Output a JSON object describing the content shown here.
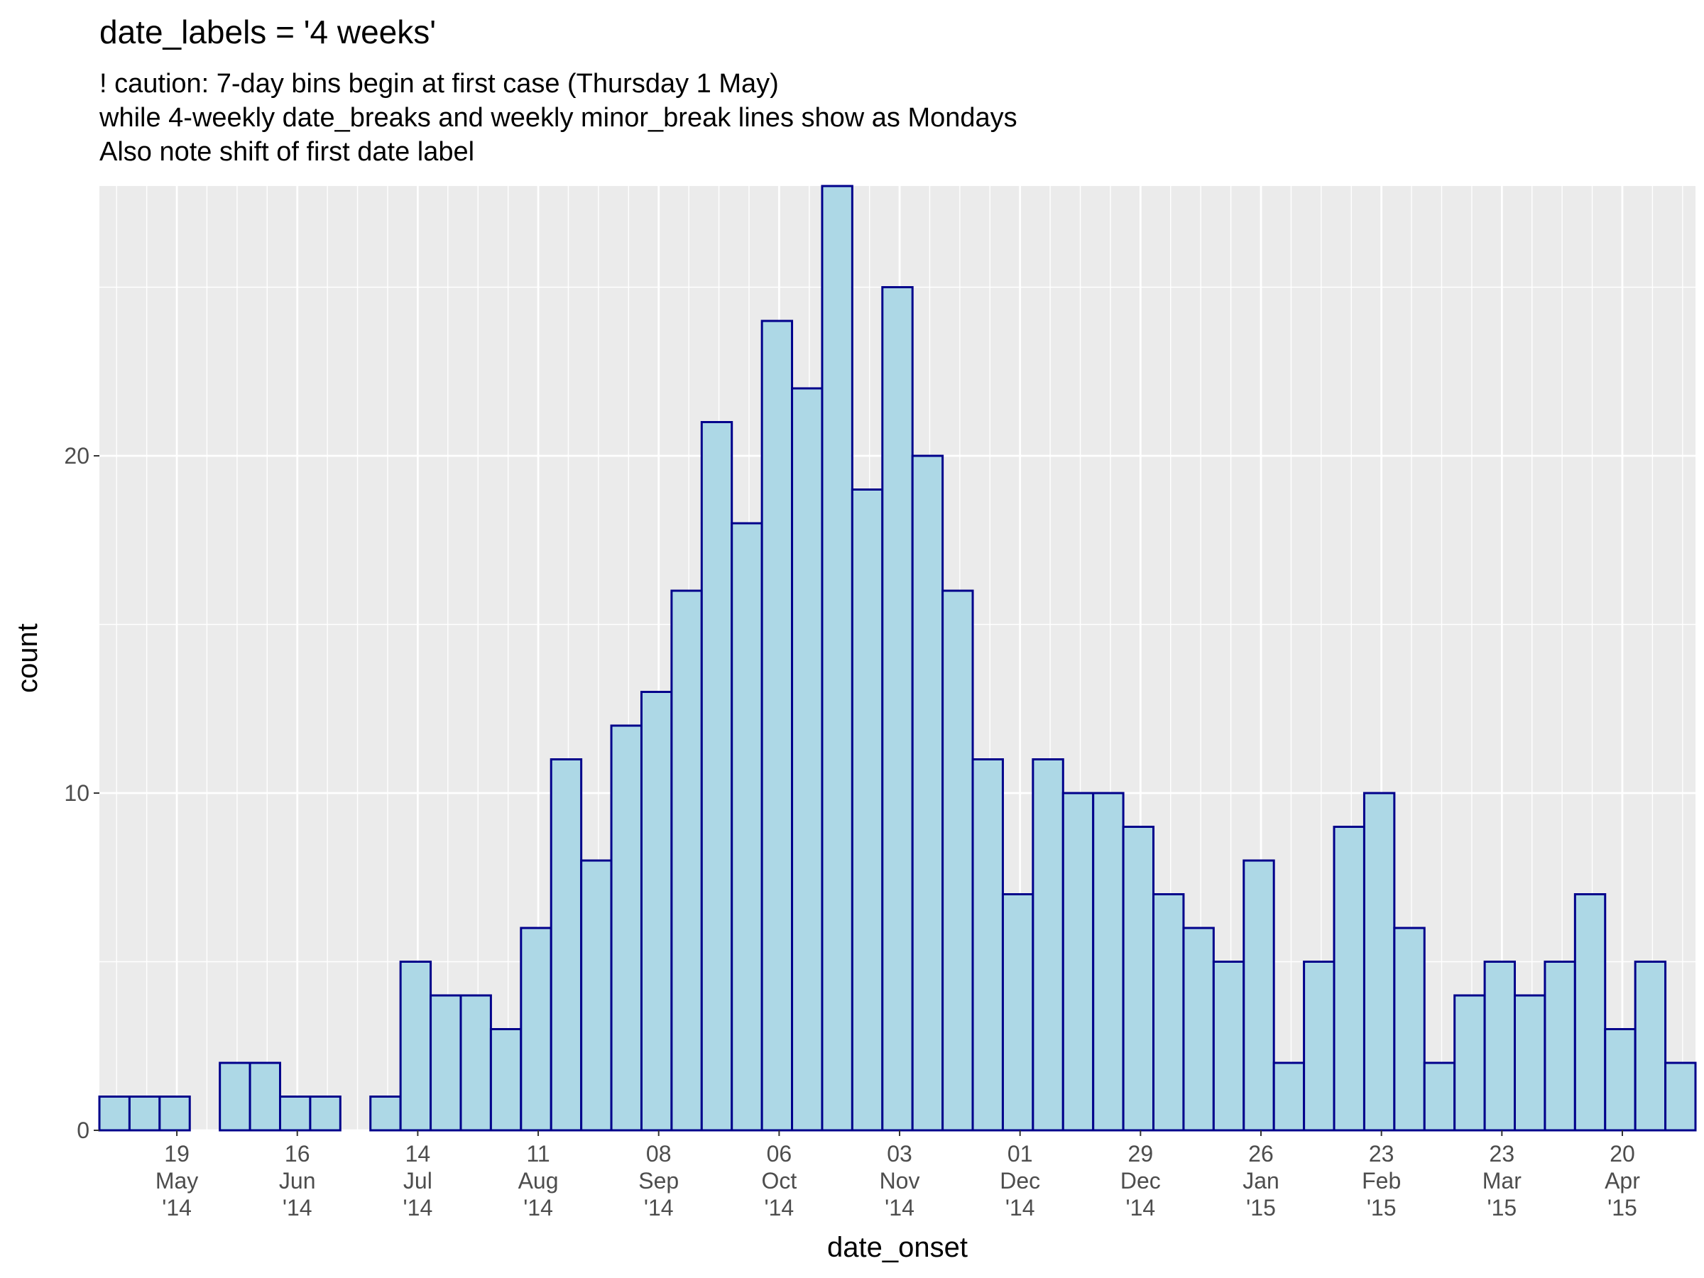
{
  "title": "date_labels = '4 weeks'",
  "subtitle_lines": [
    "! caution: 7-day bins begin at first case (Thursday 1 May)",
    "while 4-weekly date_breaks and weekly minor_break lines show as Mondays",
    "Also note shift of first date label"
  ],
  "colors": {
    "panel_bg": "#ebebeb",
    "grid": "#ffffff",
    "bar_fill": "#add8e6",
    "bar_stroke": "#00008b",
    "tick_text": "#4d4d4d"
  },
  "chart_data": {
    "type": "bar",
    "title": "date_labels = '4 weeks'",
    "xlabel": "date_onset",
    "ylabel": "count",
    "ylim": [
      0,
      28
    ],
    "grid": true,
    "y_ticks": [
      0,
      10,
      20
    ],
    "bin_width_days": 7,
    "first_bin_start": "2014-05-01",
    "x_range": [
      "2014-05-01",
      "2015-05-07"
    ],
    "values": [
      1,
      1,
      1,
      0,
      2,
      2,
      1,
      1,
      0,
      1,
      5,
      4,
      4,
      3,
      6,
      11,
      8,
      12,
      13,
      16,
      21,
      18,
      24,
      22,
      28,
      19,
      25,
      20,
      16,
      11,
      7,
      11,
      10,
      10,
      9,
      7,
      6,
      5,
      8,
      2,
      5,
      9,
      10,
      6,
      2,
      4,
      5,
      4,
      5,
      7,
      3,
      5,
      2
    ],
    "x_ticks": [
      {
        "date": "2014-05-19",
        "label": [
          "19",
          "May",
          "'14"
        ]
      },
      {
        "date": "2014-06-16",
        "label": [
          "16",
          "Jun",
          "'14"
        ]
      },
      {
        "date": "2014-07-14",
        "label": [
          "14",
          "Jul",
          "'14"
        ]
      },
      {
        "date": "2014-08-11",
        "label": [
          "11",
          "Aug",
          "'14"
        ]
      },
      {
        "date": "2014-09-08",
        "label": [
          "08",
          "Sep",
          "'14"
        ]
      },
      {
        "date": "2014-10-06",
        "label": [
          "06",
          "Oct",
          "'14"
        ]
      },
      {
        "date": "2014-11-03",
        "label": [
          "03",
          "Nov",
          "'14"
        ]
      },
      {
        "date": "2014-12-01",
        "label": [
          "01",
          "Dec",
          "'14"
        ]
      },
      {
        "date": "2014-12-29",
        "label": [
          "29",
          "Dec",
          "'14"
        ]
      },
      {
        "date": "2015-01-26",
        "label": [
          "26",
          "Jan",
          "'15"
        ]
      },
      {
        "date": "2015-02-23",
        "label": [
          "23",
          "Feb",
          "'15"
        ]
      },
      {
        "date": "2015-03-23",
        "label": [
          "23",
          "Mar",
          "'15"
        ]
      },
      {
        "date": "2015-04-20",
        "label": [
          "20",
          "Apr",
          "'15"
        ]
      }
    ],
    "minor_breaks": "weekly Mondays"
  }
}
